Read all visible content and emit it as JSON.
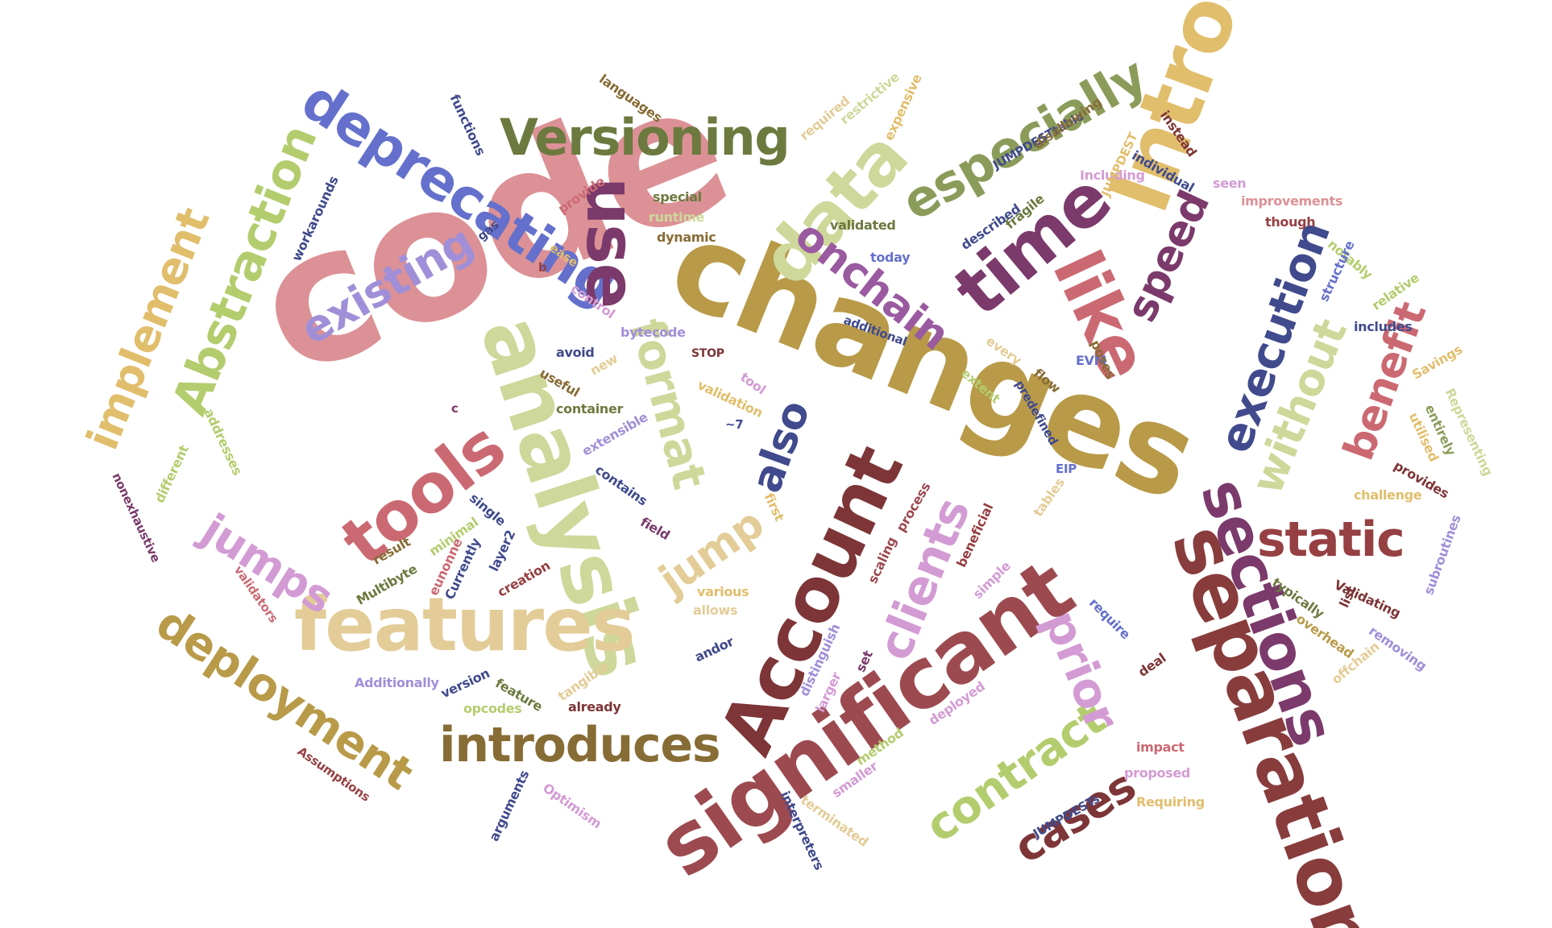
{
  "words": [
    "code",
    "changes",
    "Introducing",
    "significant",
    "Account",
    "analysis",
    "separation",
    "features",
    "Versioning",
    "sections",
    "introduces",
    "deprecating",
    "especially",
    "data",
    "time",
    "static",
    "use",
    "tools",
    "like",
    "deployment",
    "Abstraction",
    "implement",
    "existing",
    "onchain",
    "format",
    "execution",
    "without",
    "benefit",
    "speed",
    "jumps",
    "clients",
    "contract",
    "cases",
    "prior",
    "also",
    "jump",
    "languages",
    "functions",
    "workarounds",
    "gas",
    "provide",
    "special",
    "runtime",
    "dynamic",
    "ease",
    "b",
    "control",
    "required",
    "restrictive",
    "expensive",
    "validated",
    "today",
    "JUMPDESTtable",
    "disallowing",
    "instead",
    "individual",
    "Including",
    "seen",
    "improvements",
    "though",
    "JUMPDEST",
    "fragile",
    "described",
    "notably",
    "structure",
    "relative",
    "includes",
    "additional",
    "bytecode",
    "avoid",
    "STOP",
    "tool",
    "every",
    "EVM",
    "poses",
    "flow",
    "predefined",
    "extent",
    "useful",
    "new",
    "validation",
    "container",
    "c",
    "~7",
    "addresses",
    "extensible",
    "contains",
    "different",
    "nonexhaustive",
    "single",
    "first",
    "process",
    "Savings",
    "Representing",
    "entirely",
    "utilised",
    "provides",
    "challenge",
    "Currently",
    "minimal",
    "layer2",
    "eunonne",
    "field",
    "result",
    "Multibyte",
    "creation",
    "validators",
    "EIP",
    "tables",
    "beneficial",
    "simple",
    "scaling",
    "subroutines",
    "typically",
    "Validating",
    "require",
    "list",
    "removing",
    "overhead",
    "offchain",
    "various",
    "allows",
    "andor",
    "tangible",
    "distinguish",
    "larger",
    "set",
    "Additionally",
    "version",
    "feature",
    "opcodes",
    "already",
    "deployed",
    "deal",
    "impact",
    "method",
    "smaller",
    "proposed",
    "Requiring",
    "Assumptions",
    "Optimism",
    "arguments",
    "terminated",
    "interpreters",
    "JUMPDESTs"
  ],
  "colors": {
    "pink": "#dc9196",
    "olive": "#b89a48",
    "goldenrod": "#e1be6c",
    "maroon": "#964043",
    "mauve": "#9c4a50",
    "sage": "#cdd89a",
    "wheat": "#e3cc97",
    "moss": "#6c7a3f",
    "purple": "#7b3a6b",
    "periwinkle": "#6470cc",
    "olive_green": "#8b9c5a",
    "navy": "#404a8c",
    "brown": "#876c35",
    "rose": "#cb6973",
    "lavender": "#a08fd8",
    "lilac": "#d39bd4",
    "lime": "#b3cd6e"
  }
}
